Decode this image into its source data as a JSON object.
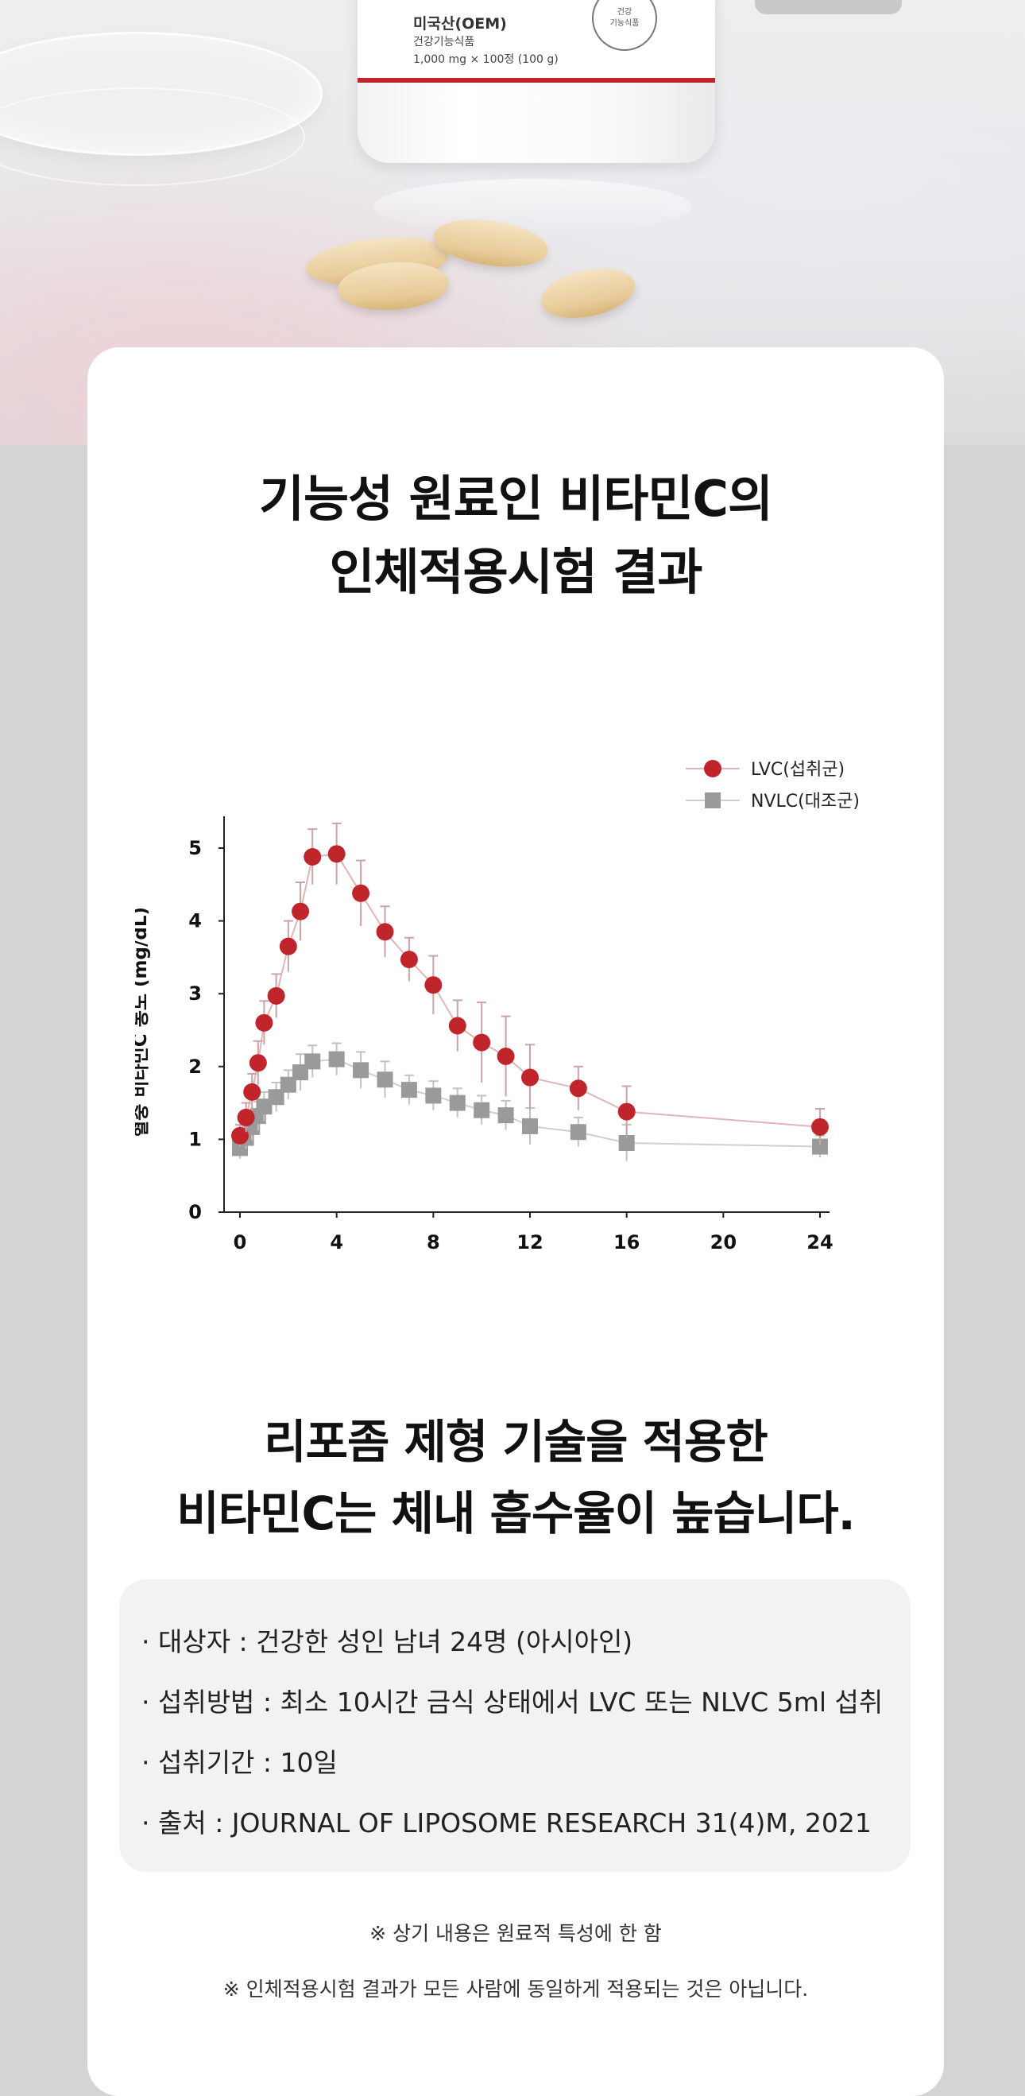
{
  "product": {
    "origin_label": "미국산(OEM)",
    "category": "건강기능식품",
    "spec": "1,000 mg × 100정 (100 g)",
    "seal_line1": "건강",
    "seal_line2": "기능식품"
  },
  "headline": {
    "line1": "기능성 원료인 비타민C의",
    "line2": "인체적용시험 결과"
  },
  "chart_data": {
    "type": "scatter",
    "ylabel": "혈중 비타민C 농도 (mg/dL)",
    "xlabel": "",
    "xlim": [
      0,
      24
    ],
    "ylim": [
      0,
      5
    ],
    "xticks": [
      0,
      4,
      8,
      12,
      16,
      20,
      24
    ],
    "yticks": [
      0,
      1,
      2,
      3,
      4,
      5
    ],
    "legend_position": "top-right",
    "series": [
      {
        "name": "LVC(섭취군)",
        "marker": "circle",
        "color": "#c0252b",
        "x": [
          0,
          0.25,
          0.5,
          0.75,
          1,
          1.5,
          2,
          2.5,
          3,
          4,
          5,
          6,
          7,
          8,
          9,
          10,
          11,
          12,
          14,
          16,
          24
        ],
        "y": [
          1.05,
          1.3,
          1.65,
          2.05,
          2.6,
          2.97,
          3.65,
          4.13,
          4.88,
          4.92,
          4.38,
          3.85,
          3.47,
          3.12,
          2.56,
          2.33,
          2.14,
          1.85,
          1.7,
          1.38,
          1.17
        ],
        "err": [
          0.15,
          0.2,
          0.25,
          0.3,
          0.3,
          0.3,
          0.35,
          0.4,
          0.38,
          0.42,
          0.45,
          0.35,
          0.3,
          0.4,
          0.35,
          0.55,
          0.55,
          0.45,
          0.3,
          0.35,
          0.25
        ]
      },
      {
        "name": "NVLC(대조군)",
        "marker": "square",
        "color": "#9a9a9a",
        "x": [
          0,
          0.25,
          0.5,
          0.75,
          1,
          1.5,
          2,
          2.5,
          3,
          4,
          5,
          6,
          7,
          8,
          9,
          10,
          11,
          12,
          14,
          16,
          24
        ],
        "y": [
          0.88,
          1.02,
          1.17,
          1.32,
          1.45,
          1.58,
          1.75,
          1.92,
          2.07,
          2.1,
          1.95,
          1.82,
          1.68,
          1.6,
          1.5,
          1.4,
          1.33,
          1.18,
          1.1,
          0.95,
          0.9
        ],
        "err": [
          0.15,
          0.15,
          0.18,
          0.2,
          0.2,
          0.2,
          0.2,
          0.25,
          0.22,
          0.22,
          0.25,
          0.25,
          0.2,
          0.2,
          0.2,
          0.2,
          0.2,
          0.25,
          0.2,
          0.25,
          0.15
        ]
      }
    ]
  },
  "subheadline": {
    "line1": "리포좀 제형 기술을 적용한",
    "line2": "비타민C는 체내 흡수율이 높습니다."
  },
  "info": [
    "· 대상자 : 건강한 성인 남녀 24명 (아시아인)",
    "· 섭취방법 : 최소 10시간 금식 상태에서 LVC 또는 NLVC 5ml 섭취",
    "· 섭취기간 : 10일",
    "· 출처 : JOURNAL OF LIPOSOME RESEARCH 31(4)M, 2021"
  ],
  "notes": [
    "※ 상기 내용은 원료적 특성에 한 함",
    "※ 인체적용시험 결과가 모든 사람에 동일하게 적용되는 것은 아닙니다."
  ]
}
